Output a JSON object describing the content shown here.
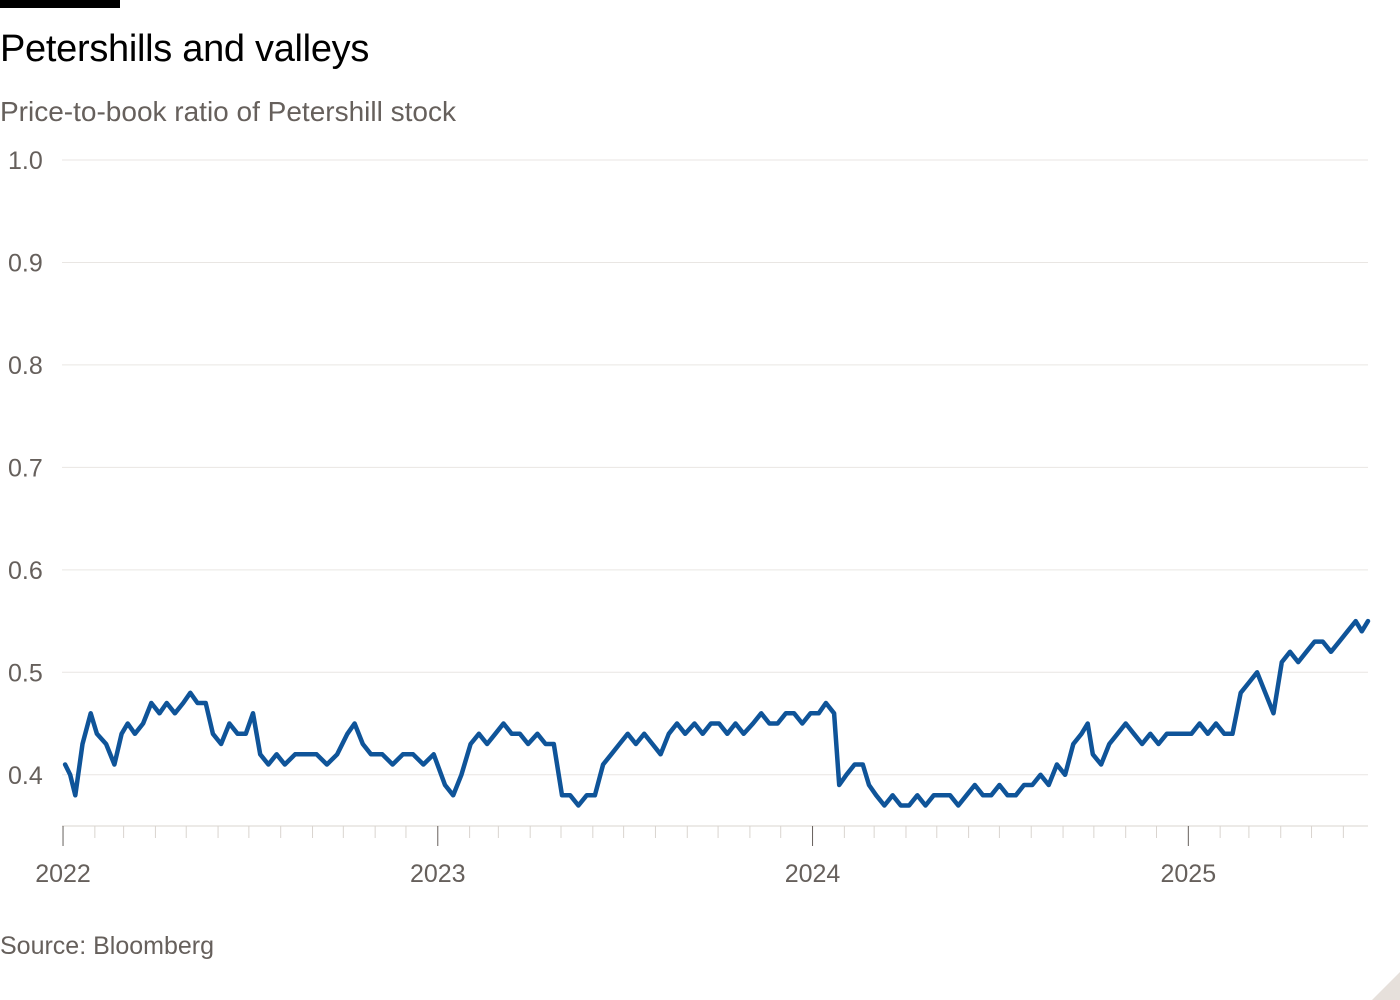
{
  "header": {
    "title": "Petershills and valleys",
    "subtitle": "Price-to-book ratio of Petershill stock"
  },
  "footer": {
    "source": "Source: Bloomberg"
  },
  "colors": {
    "line": "#0f5499",
    "grid": "#e9e6e3",
    "axis": "#66605c"
  },
  "chart_data": {
    "type": "line",
    "title": "Petershills and valleys",
    "subtitle": "Price-to-book ratio of Petershill stock",
    "xlabel": "",
    "ylabel": "",
    "ylim": [
      0.35,
      1.0
    ],
    "yticks": [
      0.4,
      0.5,
      0.6,
      0.7,
      0.8,
      0.9,
      1.0
    ],
    "ytick_labels": [
      "0.4",
      "0.5",
      "0.6",
      "0.7",
      "0.8",
      "0.9",
      "1.0"
    ],
    "xlim": [
      "2021-12-31",
      "2025-06-25"
    ],
    "xtick_labels": [
      {
        "date": "2022-01-01",
        "label": "2022"
      },
      {
        "date": "2023-01-01",
        "label": "2023"
      },
      {
        "date": "2024-01-01",
        "label": "2024"
      },
      {
        "date": "2025-01-01",
        "label": "2025"
      }
    ],
    "grid": true,
    "series": [
      {
        "values": [
          [
            "2022-01-03",
            0.41
          ],
          [
            "2022-01-08",
            0.4
          ],
          [
            "2022-01-13",
            0.38
          ],
          [
            "2022-01-20",
            0.43
          ],
          [
            "2022-01-28",
            0.46
          ],
          [
            "2022-02-03",
            0.44
          ],
          [
            "2022-02-12",
            0.43
          ],
          [
            "2022-02-20",
            0.41
          ],
          [
            "2022-02-27",
            0.44
          ],
          [
            "2022-03-05",
            0.45
          ],
          [
            "2022-03-12",
            0.44
          ],
          [
            "2022-03-20",
            0.45
          ],
          [
            "2022-03-28",
            0.47
          ],
          [
            "2022-04-05",
            0.46
          ],
          [
            "2022-04-12",
            0.47
          ],
          [
            "2022-04-20",
            0.46
          ],
          [
            "2022-04-28",
            0.47
          ],
          [
            "2022-05-05",
            0.48
          ],
          [
            "2022-05-12",
            0.47
          ],
          [
            "2022-05-20",
            0.47
          ],
          [
            "2022-05-27",
            0.44
          ],
          [
            "2022-06-04",
            0.43
          ],
          [
            "2022-06-12",
            0.45
          ],
          [
            "2022-06-20",
            0.44
          ],
          [
            "2022-06-28",
            0.44
          ],
          [
            "2022-07-05",
            0.46
          ],
          [
            "2022-07-12",
            0.42
          ],
          [
            "2022-07-20",
            0.41
          ],
          [
            "2022-07-28",
            0.42
          ],
          [
            "2022-08-05",
            0.41
          ],
          [
            "2022-08-15",
            0.42
          ],
          [
            "2022-08-25",
            0.42
          ],
          [
            "2022-09-05",
            0.42
          ],
          [
            "2022-09-15",
            0.41
          ],
          [
            "2022-09-25",
            0.42
          ],
          [
            "2022-10-05",
            0.44
          ],
          [
            "2022-10-12",
            0.45
          ],
          [
            "2022-10-20",
            0.43
          ],
          [
            "2022-10-28",
            0.42
          ],
          [
            "2022-11-08",
            0.42
          ],
          [
            "2022-11-18",
            0.41
          ],
          [
            "2022-11-28",
            0.42
          ],
          [
            "2022-12-08",
            0.42
          ],
          [
            "2022-12-18",
            0.41
          ],
          [
            "2022-12-28",
            0.42
          ],
          [
            "2023-01-08",
            0.39
          ],
          [
            "2023-01-16",
            0.38
          ],
          [
            "2023-01-24",
            0.4
          ],
          [
            "2023-02-02",
            0.43
          ],
          [
            "2023-02-10",
            0.44
          ],
          [
            "2023-02-18",
            0.43
          ],
          [
            "2023-02-26",
            0.44
          ],
          [
            "2023-03-06",
            0.45
          ],
          [
            "2023-03-14",
            0.44
          ],
          [
            "2023-03-22",
            0.44
          ],
          [
            "2023-03-30",
            0.43
          ],
          [
            "2023-04-08",
            0.44
          ],
          [
            "2023-04-16",
            0.43
          ],
          [
            "2023-04-24",
            0.43
          ],
          [
            "2023-05-02",
            0.38
          ],
          [
            "2023-05-10",
            0.38
          ],
          [
            "2023-05-18",
            0.37
          ],
          [
            "2023-05-26",
            0.38
          ],
          [
            "2023-06-03",
            0.38
          ],
          [
            "2023-06-11",
            0.41
          ],
          [
            "2023-06-19",
            0.42
          ],
          [
            "2023-06-27",
            0.43
          ],
          [
            "2023-07-05",
            0.44
          ],
          [
            "2023-07-13",
            0.43
          ],
          [
            "2023-07-21",
            0.44
          ],
          [
            "2023-07-29",
            0.43
          ],
          [
            "2023-08-06",
            0.42
          ],
          [
            "2023-08-14",
            0.44
          ],
          [
            "2023-08-22",
            0.45
          ],
          [
            "2023-08-30",
            0.44
          ],
          [
            "2023-09-08",
            0.45
          ],
          [
            "2023-09-16",
            0.44
          ],
          [
            "2023-09-24",
            0.45
          ],
          [
            "2023-10-02",
            0.45
          ],
          [
            "2023-10-10",
            0.44
          ],
          [
            "2023-10-18",
            0.45
          ],
          [
            "2023-10-26",
            0.44
          ],
          [
            "2023-11-04",
            0.45
          ],
          [
            "2023-11-12",
            0.46
          ],
          [
            "2023-11-20",
            0.45
          ],
          [
            "2023-11-28",
            0.45
          ],
          [
            "2023-12-06",
            0.46
          ],
          [
            "2023-12-14",
            0.46
          ],
          [
            "2023-12-22",
            0.45
          ],
          [
            "2023-12-30",
            0.46
          ],
          [
            "2024-01-07",
            0.46
          ],
          [
            "2024-01-14",
            0.47
          ],
          [
            "2024-01-22",
            0.46
          ],
          [
            "2024-01-27",
            0.39
          ],
          [
            "2024-02-03",
            0.4
          ],
          [
            "2024-02-11",
            0.41
          ],
          [
            "2024-02-19",
            0.41
          ],
          [
            "2024-02-25",
            0.39
          ],
          [
            "2024-03-03",
            0.38
          ],
          [
            "2024-03-11",
            0.37
          ],
          [
            "2024-03-19",
            0.38
          ],
          [
            "2024-03-27",
            0.37
          ],
          [
            "2024-04-04",
            0.37
          ],
          [
            "2024-04-12",
            0.38
          ],
          [
            "2024-04-20",
            0.37
          ],
          [
            "2024-04-28",
            0.38
          ],
          [
            "2024-05-06",
            0.38
          ],
          [
            "2024-05-14",
            0.38
          ],
          [
            "2024-05-22",
            0.37
          ],
          [
            "2024-05-30",
            0.38
          ],
          [
            "2024-06-07",
            0.39
          ],
          [
            "2024-06-15",
            0.38
          ],
          [
            "2024-06-23",
            0.38
          ],
          [
            "2024-07-01",
            0.39
          ],
          [
            "2024-07-09",
            0.38
          ],
          [
            "2024-07-17",
            0.38
          ],
          [
            "2024-07-25",
            0.39
          ],
          [
            "2024-08-02",
            0.39
          ],
          [
            "2024-08-10",
            0.4
          ],
          [
            "2024-08-18",
            0.39
          ],
          [
            "2024-08-26",
            0.41
          ],
          [
            "2024-09-03",
            0.4
          ],
          [
            "2024-09-11",
            0.43
          ],
          [
            "2024-09-19",
            0.44
          ],
          [
            "2024-09-25",
            0.45
          ],
          [
            "2024-09-30",
            0.42
          ],
          [
            "2024-10-08",
            0.41
          ],
          [
            "2024-10-16",
            0.43
          ],
          [
            "2024-10-24",
            0.44
          ],
          [
            "2024-11-01",
            0.45
          ],
          [
            "2024-11-09",
            0.44
          ],
          [
            "2024-11-17",
            0.43
          ],
          [
            "2024-11-25",
            0.44
          ],
          [
            "2024-12-03",
            0.43
          ],
          [
            "2024-12-11",
            0.44
          ],
          [
            "2024-12-19",
            0.44
          ],
          [
            "2024-12-27",
            0.44
          ],
          [
            "2025-01-04",
            0.44
          ],
          [
            "2025-01-12",
            0.45
          ],
          [
            "2025-01-20",
            0.44
          ],
          [
            "2025-01-28",
            0.45
          ],
          [
            "2025-02-05",
            0.44
          ],
          [
            "2025-02-13",
            0.44
          ],
          [
            "2025-02-21",
            0.48
          ],
          [
            "2025-03-01",
            0.49
          ],
          [
            "2025-03-09",
            0.5
          ],
          [
            "2025-03-17",
            0.48
          ],
          [
            "2025-03-25",
            0.46
          ],
          [
            "2025-04-02",
            0.51
          ],
          [
            "2025-04-10",
            0.52
          ],
          [
            "2025-04-18",
            0.51
          ],
          [
            "2025-04-26",
            0.52
          ],
          [
            "2025-05-04",
            0.53
          ],
          [
            "2025-05-12",
            0.53
          ],
          [
            "2025-05-20",
            0.52
          ],
          [
            "2025-05-28",
            0.53
          ],
          [
            "2025-06-05",
            0.54
          ],
          [
            "2025-06-13",
            0.55
          ],
          [
            "2025-06-19",
            0.54
          ],
          [
            "2025-06-25",
            0.55
          ]
        ]
      }
    ]
  }
}
